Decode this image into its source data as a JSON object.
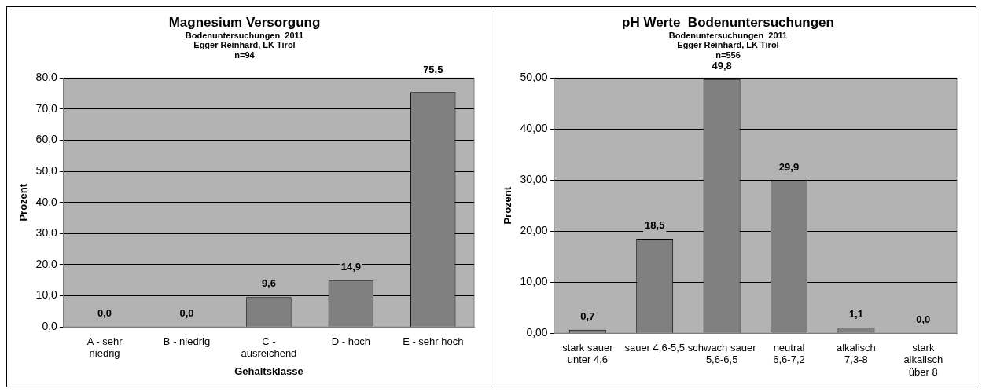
{
  "chart_data": [
    {
      "type": "bar",
      "title": "Magnesium Versorgung",
      "subtitle": "Bodenuntersuchungen  2011\nEgger Reinhard, LK Tirol\nn=94",
      "xlabel": "Gehaltsklasse",
      "ylabel": "Prozent",
      "categories": [
        "A - sehr niedrig",
        "B - niedrig",
        "C - ausreichend",
        "D - hoch",
        "E - sehr hoch"
      ],
      "values": [
        0,
        0,
        9.6,
        14.9,
        75.5
      ],
      "color": "#808080",
      "value_labels": [
        "0,0",
        "0,0",
        "9,6",
        "14,9",
        "75,5"
      ],
      "ylim": [
        0,
        80
      ],
      "yticks": [
        {
          "value": 0,
          "label": "0,0"
        },
        {
          "value": 10,
          "label": "10,0"
        },
        {
          "value": 20,
          "label": "20,0"
        },
        {
          "value": 30,
          "label": "30,0"
        },
        {
          "value": 40,
          "label": "40,0"
        },
        {
          "value": 50,
          "label": "50,0"
        },
        {
          "value": 60,
          "label": "60,0"
        },
        {
          "value": 70,
          "label": "70,0"
        },
        {
          "value": 80,
          "label": "80,0"
        }
      ],
      "grid": "y",
      "legend": false
    },
    {
      "type": "bar",
      "title": "pH Werte  Bodenuntersuchungen",
      "subtitle": "Bodenuntersuchungen  2011\nEgger Reinhard, LK Tirol\nn=556",
      "ylabel": "Prozent",
      "categories": [
        "stark sauer unter 4,6",
        "sauer 4,6-5,5",
        "schwach sauer 5,6-6,5",
        "neutral 6,6-7,2",
        "alkalisch 7,3-8",
        "stark alkalisch über 8"
      ],
      "values": [
        0.7,
        18.5,
        49.8,
        29.9,
        1.1,
        0.0
      ],
      "color": "#808080",
      "value_labels": [
        "0,7",
        "18,5",
        "49,8",
        "29,9",
        "1,1",
        "0,0"
      ],
      "ylim": [
        0,
        50
      ],
      "yticks": [
        {
          "value": 0,
          "label": "0,00"
        },
        {
          "value": 10,
          "label": "10,00"
        },
        {
          "value": 20,
          "label": "20,00"
        },
        {
          "value": 30,
          "label": "30,00"
        },
        {
          "value": 40,
          "label": "40,00"
        },
        {
          "value": 50,
          "label": "50,00"
        }
      ],
      "grid": "y",
      "legend": false
    }
  ]
}
